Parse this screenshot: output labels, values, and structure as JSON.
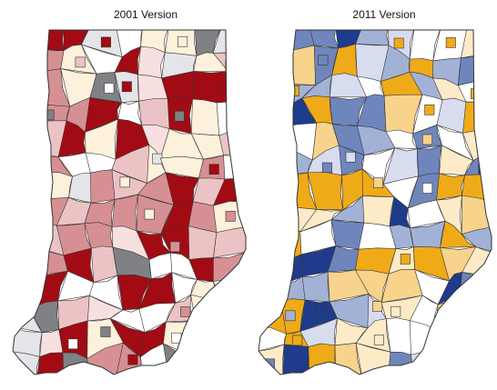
{
  "panels": [
    {
      "title": "2001 Version",
      "palette": "red"
    },
    {
      "title": "2011 Version",
      "palette": "blue-gold"
    }
  ],
  "colors": {
    "red": [
      "#a30b14",
      "#d69094",
      "#ecc3c4",
      "#f7e0df",
      "#fdf1dc",
      "#e4e5e8",
      "#7f8184",
      "#ffffff"
    ],
    "blue-gold": [
      "#1f3b8c",
      "#6f86bd",
      "#a2b2d6",
      "#d8dcef",
      "#efaa18",
      "#f7d38c",
      "#fdebc8",
      "#ffffff"
    ],
    "outline": "#333333"
  }
}
